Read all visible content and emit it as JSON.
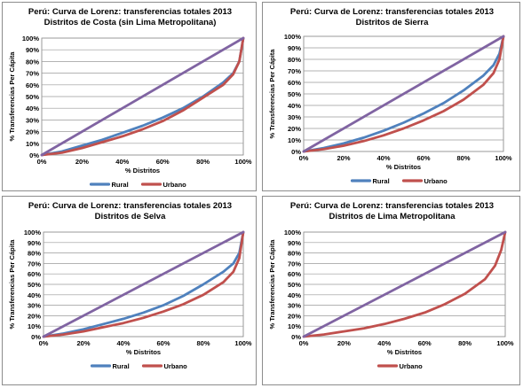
{
  "chart_data": [
    {
      "type": "line",
      "title_lines": [
        "Perú: Curva de Lorenz: transferencias totales 2013",
        "Distritos de Costa (sin Lima Metropolitana)"
      ],
      "xlabel": "% Distritos",
      "ylabel": "% Transferencias Per Cápita",
      "x_ticks": [
        "0%",
        "20%",
        "40%",
        "60%",
        "80%",
        "100%"
      ],
      "y_ticks": [
        "0%",
        "10%",
        "20%",
        "30%",
        "40%",
        "50%",
        "60%",
        "70%",
        "80%",
        "90%",
        "100%"
      ],
      "xlim": [
        0,
        100
      ],
      "ylim": [
        0,
        100
      ],
      "grid": true,
      "legend_position": "bottom",
      "series": [
        {
          "name": "Rural",
          "color": "#4f81bd",
          "x": [
            0,
            10,
            20,
            30,
            40,
            50,
            60,
            70,
            80,
            90,
            95,
            98,
            100
          ],
          "y": [
            0,
            3,
            8,
            13,
            19,
            25,
            32,
            40,
            50,
            62,
            70,
            80,
            100
          ]
        },
        {
          "name": "Urbano",
          "color": "#c0504d",
          "x": [
            0,
            10,
            20,
            30,
            40,
            50,
            60,
            70,
            80,
            90,
            95,
            98,
            100
          ],
          "y": [
            0,
            2,
            6,
            11,
            16,
            22,
            29,
            38,
            49,
            60,
            69,
            80,
            100
          ]
        },
        {
          "name": "",
          "color": "#8064a2",
          "x": [
            0,
            100
          ],
          "y": [
            0,
            100
          ]
        }
      ],
      "legend": [
        {
          "label": "Rural",
          "color": "#4f81bd"
        },
        {
          "label": "Urbano",
          "color": "#c0504d"
        }
      ]
    },
    {
      "type": "line",
      "title_lines": [
        "Perú: Curva de Lorenz: transferencias totales 2013",
        "Distritos de Sierra"
      ],
      "xlabel": "% Distritos",
      "ylabel": "% Transferencias Per Cápita",
      "x_ticks": [
        "0%",
        "20%",
        "40%",
        "60%",
        "80%",
        "100%"
      ],
      "y_ticks": [
        "0%",
        "10%",
        "20%",
        "30%",
        "40%",
        "50%",
        "60%",
        "70%",
        "80%",
        "90%",
        "100%"
      ],
      "xlim": [
        0,
        100
      ],
      "ylim": [
        0,
        100
      ],
      "grid": true,
      "legend_position": "bottom",
      "series": [
        {
          "name": "Rural",
          "color": "#4f81bd",
          "x": [
            0,
            10,
            20,
            30,
            40,
            50,
            60,
            70,
            80,
            90,
            95,
            98,
            100
          ],
          "y": [
            0,
            3,
            7,
            12,
            18,
            25,
            33,
            42,
            53,
            66,
            75,
            85,
            100
          ]
        },
        {
          "name": "Urbano",
          "color": "#c0504d",
          "x": [
            0,
            10,
            20,
            30,
            40,
            50,
            60,
            70,
            80,
            90,
            95,
            98,
            100
          ],
          "y": [
            0,
            2,
            5,
            9,
            14,
            20,
            27,
            35,
            45,
            58,
            68,
            80,
            100
          ]
        },
        {
          "name": "",
          "color": "#8064a2",
          "x": [
            0,
            100
          ],
          "y": [
            0,
            100
          ]
        }
      ],
      "legend": [
        {
          "label": "Rural",
          "color": "#4f81bd"
        },
        {
          "label": "Urbano",
          "color": "#c0504d"
        }
      ]
    },
    {
      "type": "line",
      "title_lines": [
        "Perú: Curva de Lorenz: transferencias totales 2013",
        "Distritos de Selva"
      ],
      "xlabel": "% Distritos",
      "ylabel": "% Transferencias Per Cápita",
      "x_ticks": [
        "0%",
        "20%",
        "40%",
        "60%",
        "80%",
        "100%"
      ],
      "y_ticks": [
        "0%",
        "10%",
        "20%",
        "30%",
        "40%",
        "50%",
        "60%",
        "70%",
        "80%",
        "90%",
        "100%"
      ],
      "xlim": [
        0,
        100
      ],
      "ylim": [
        0,
        100
      ],
      "grid": true,
      "legend_position": "bottom",
      "series": [
        {
          "name": "Rural",
          "color": "#4f81bd",
          "x": [
            0,
            10,
            20,
            30,
            40,
            50,
            60,
            70,
            80,
            90,
            95,
            98,
            100
          ],
          "y": [
            0,
            3,
            7,
            12,
            17,
            23,
            30,
            39,
            50,
            62,
            70,
            80,
            100
          ]
        },
        {
          "name": "Urbano",
          "color": "#c0504d",
          "x": [
            0,
            10,
            20,
            30,
            40,
            50,
            60,
            70,
            80,
            90,
            95,
            98,
            100
          ],
          "y": [
            0,
            2,
            5,
            9,
            13,
            18,
            24,
            31,
            40,
            52,
            62,
            75,
            100
          ]
        },
        {
          "name": "",
          "color": "#8064a2",
          "x": [
            0,
            100
          ],
          "y": [
            0,
            100
          ]
        }
      ],
      "legend": [
        {
          "label": "Rural",
          "color": "#4f81bd"
        },
        {
          "label": "Urbano",
          "color": "#c0504d"
        }
      ]
    },
    {
      "type": "line",
      "title_lines": [
        "Perú: Curva de Lorenz: transferencias totales 2013",
        "Distritos de Lima Metropolitana"
      ],
      "xlabel": "% Distritos",
      "ylabel": "% Transferencias Per Cápita",
      "x_ticks": [
        "0%",
        "20%",
        "40%",
        "60%",
        "80%",
        "100%"
      ],
      "y_ticks": [
        "0%",
        "10%",
        "20%",
        "30%",
        "40%",
        "50%",
        "60%",
        "70%",
        "80%",
        "90%",
        "100%"
      ],
      "xlim": [
        0,
        100
      ],
      "ylim": [
        0,
        100
      ],
      "grid": true,
      "legend_position": "bottom",
      "series": [
        {
          "name": "Urbano",
          "color": "#c0504d",
          "x": [
            0,
            10,
            20,
            30,
            40,
            50,
            60,
            70,
            80,
            90,
            95,
            98,
            100
          ],
          "y": [
            0,
            2,
            5,
            8,
            12,
            17,
            23,
            31,
            41,
            55,
            68,
            83,
            100
          ]
        },
        {
          "name": "",
          "color": "#8064a2",
          "x": [
            0,
            100
          ],
          "y": [
            0,
            100
          ]
        }
      ],
      "legend": [
        {
          "label": "Urbano",
          "color": "#c0504d"
        }
      ]
    }
  ]
}
